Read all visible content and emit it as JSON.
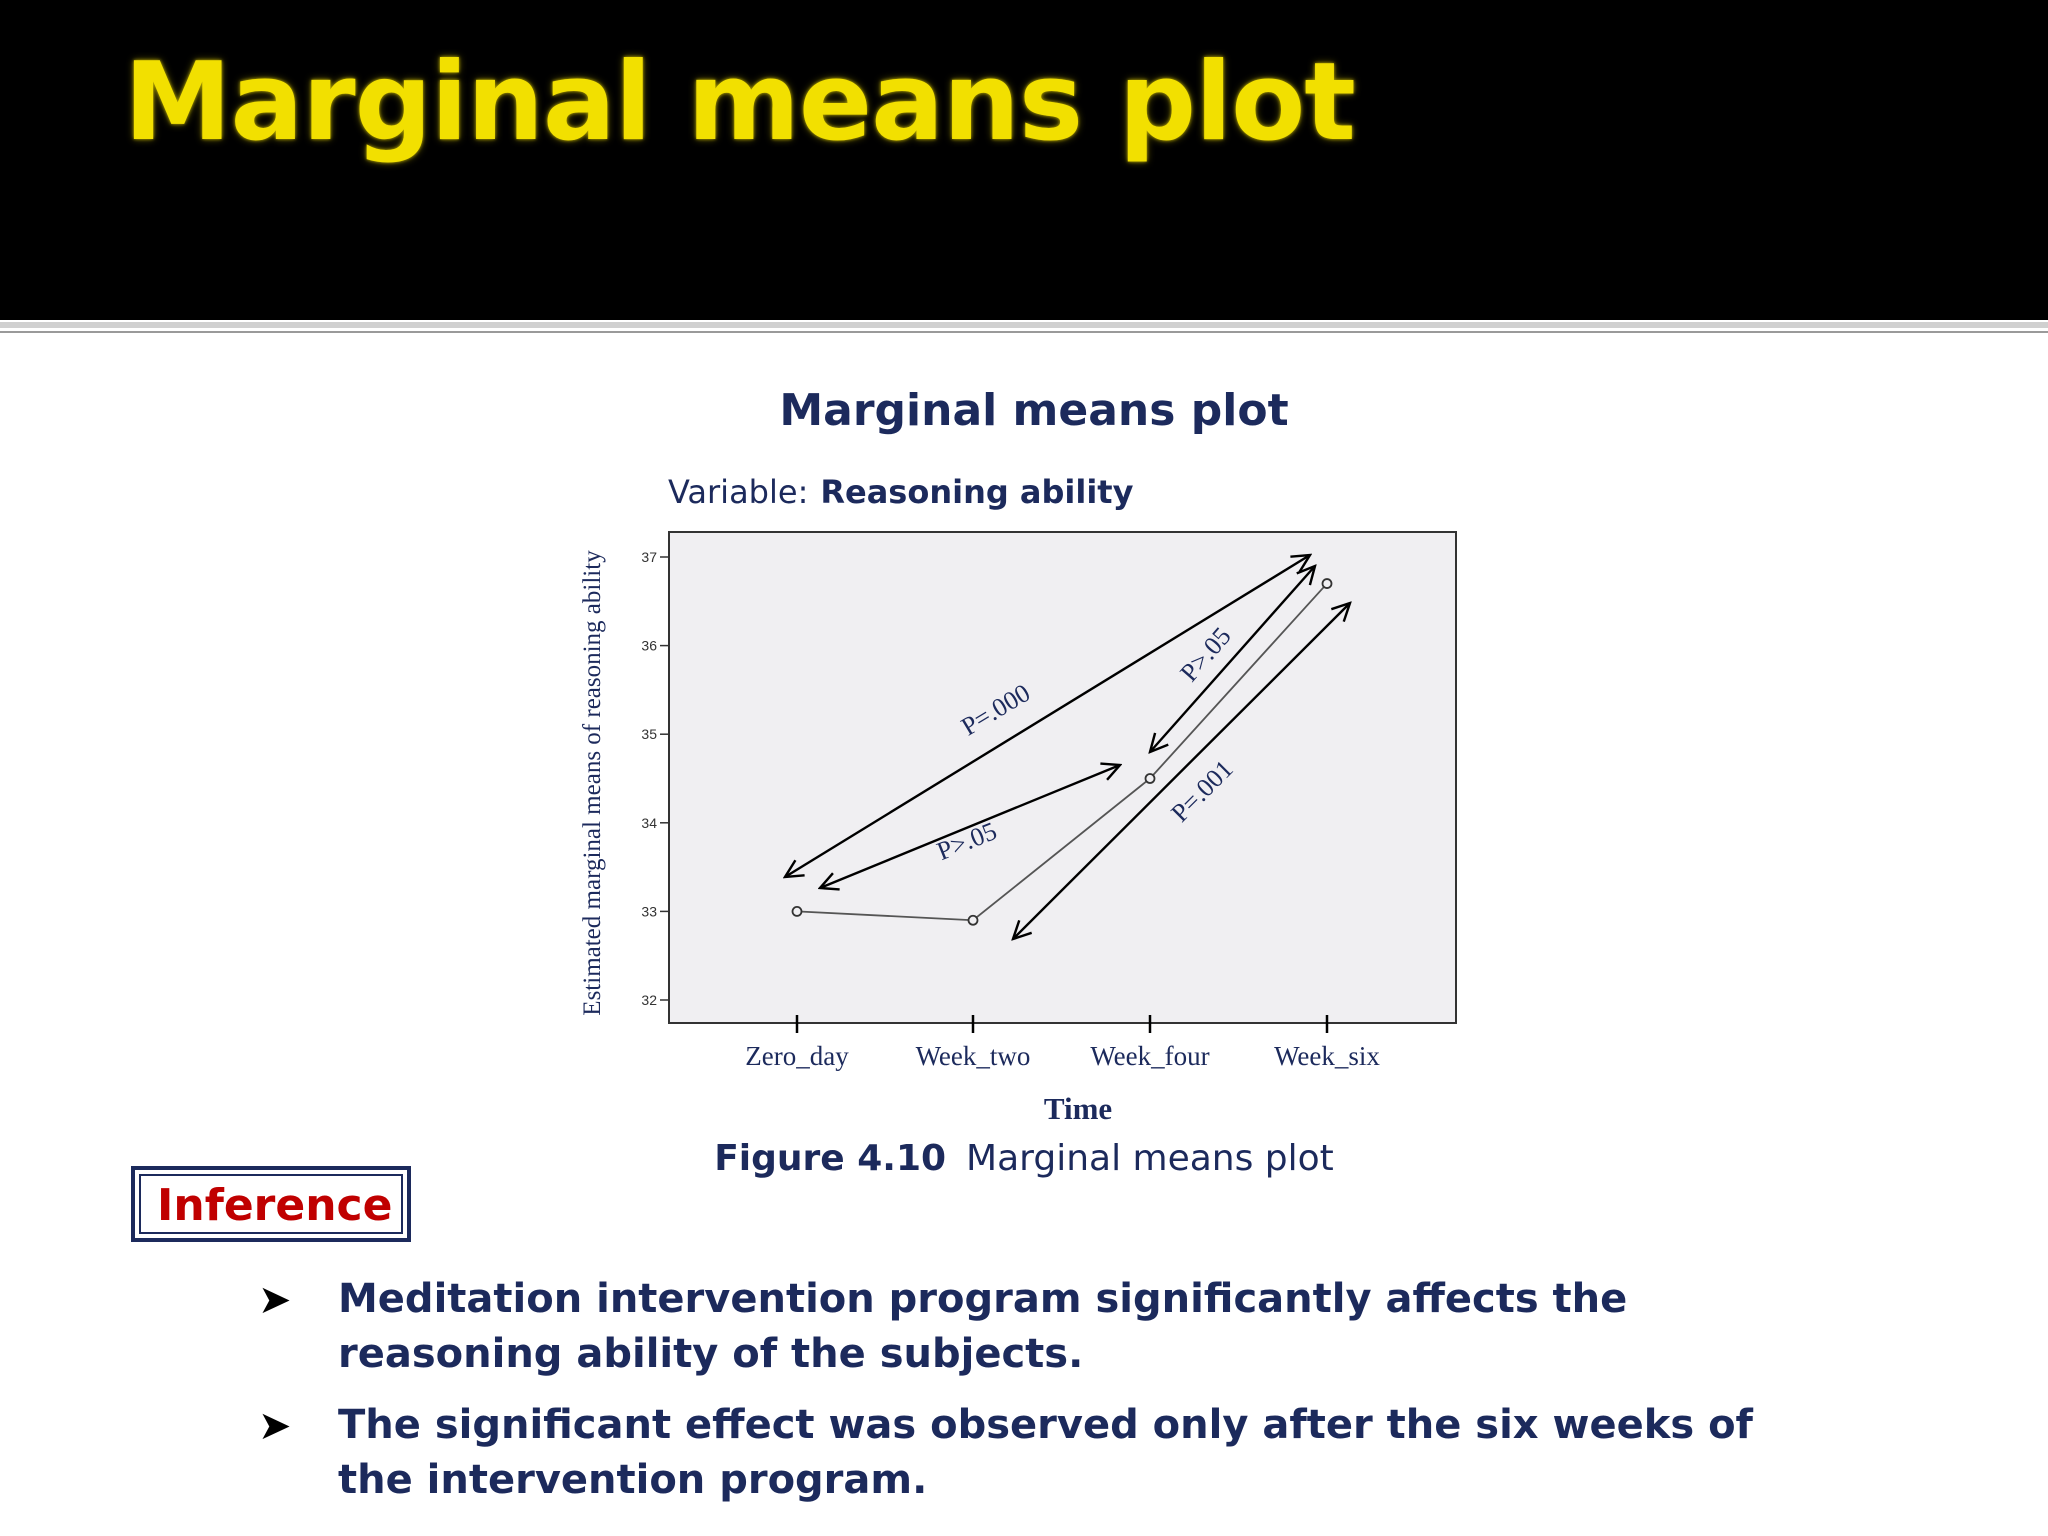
{
  "slide": {
    "title": "Marginal means plot"
  },
  "chart_title": "Marginal means plot",
  "variable_label": "Variable:",
  "variable_name": "Reasoning ability",
  "chart_data": {
    "type": "line",
    "xlabel": "Time",
    "ylabel": "Estimated marginal means of reasoning ability",
    "categories": [
      "Zero_day",
      "Week_two",
      "Week_four",
      "Week_six"
    ],
    "values": [
      33.0,
      32.9,
      34.5,
      36.7
    ],
    "yticks": [
      32,
      33,
      34,
      35,
      36,
      37
    ],
    "ylim": [
      31.7,
      37.3
    ],
    "grid": false,
    "annotations": [
      {
        "text": "P=.000",
        "from": "Zero_day",
        "to": "Week_six"
      },
      {
        "text": "P>.05",
        "from": "Week_two",
        "to": "Week_four"
      },
      {
        "text": "P>.05",
        "from": "Week_four",
        "to": "Week_six"
      },
      {
        "text": "P=.001",
        "from": "Week_two",
        "to": "Week_six"
      }
    ]
  },
  "figure_caption": {
    "label": "Figure 4.10",
    "text": "Marginal means plot"
  },
  "inference": {
    "heading": "Inference",
    "bullets": [
      "Meditation intervention program significantly affects the reasoning ability of the subjects.",
      "The significant effect was observed only after the six weeks of the intervention program."
    ]
  },
  "colors": {
    "header_bg": "#000000",
    "title_yellow": "#f2e000",
    "navy": "#1c2a5c",
    "inference_red": "#c00000",
    "plot_bg": "#f0eff2"
  }
}
